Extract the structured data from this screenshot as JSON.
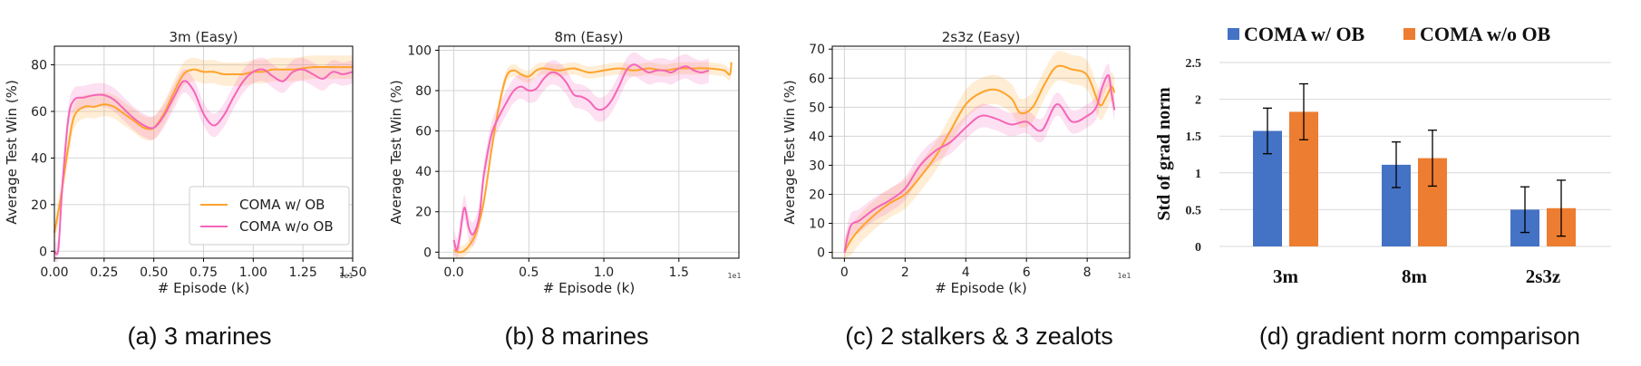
{
  "colors": {
    "coma_ob": "#ffa32b",
    "coma_no_ob": "#f565b8",
    "bar_ob": "#4472c4",
    "bar_no_ob": "#ed7d31"
  },
  "chart_data": [
    {
      "type": "line",
      "title": "3m (Easy)",
      "caption": "(a) 3 marines",
      "xlabel": "# Episode (k)",
      "ylabel": "Average Test Win (%)",
      "xlim": [
        0,
        1.5
      ],
      "ylim": [
        -3,
        88
      ],
      "xticks": [
        "0.00",
        "0.25",
        "0.50",
        "0.75",
        "1.00",
        "1.25",
        "1.50"
      ],
      "xtick_values": [
        0,
        0.25,
        0.5,
        0.75,
        1.0,
        1.25,
        1.5
      ],
      "yticks": [
        "0",
        "20",
        "40",
        "60",
        "80"
      ],
      "ytick_values": [
        0,
        20,
        40,
        60,
        80
      ],
      "x_multiplier": "1e1",
      "legend": "lower-right",
      "grid": true,
      "series": [
        {
          "name": "COMA w/ OB",
          "x": [
            0,
            0.03,
            0.07,
            0.1,
            0.15,
            0.2,
            0.25,
            0.3,
            0.35,
            0.4,
            0.45,
            0.5,
            0.55,
            0.6,
            0.65,
            0.7,
            0.75,
            0.8,
            0.85,
            0.9,
            0.95,
            1.0,
            1.05,
            1.1,
            1.2,
            1.3,
            1.4,
            1.5
          ],
          "y": [
            8,
            22,
            45,
            58,
            62,
            62,
            63,
            62,
            59,
            56,
            53,
            53,
            59,
            68,
            76,
            78,
            77,
            77,
            76,
            76,
            76,
            77,
            77,
            78,
            78,
            79,
            79,
            79
          ],
          "band": 5
        },
        {
          "name": "COMA w/o OB",
          "x": [
            0,
            0.02,
            0.04,
            0.07,
            0.1,
            0.15,
            0.2,
            0.25,
            0.3,
            0.35,
            0.4,
            0.45,
            0.5,
            0.55,
            0.6,
            0.65,
            0.7,
            0.75,
            0.8,
            0.85,
            0.9,
            0.95,
            1.0,
            1.05,
            1.1,
            1.15,
            1.2,
            1.25,
            1.3,
            1.35,
            1.4,
            1.45,
            1.5
          ],
          "y": [
            0,
            1,
            28,
            57,
            65,
            66,
            67,
            67,
            65,
            61,
            57,
            54,
            53,
            58,
            66,
            73,
            69,
            59,
            54,
            58,
            66,
            73,
            77,
            78,
            75,
            73,
            77,
            78,
            76,
            74,
            77,
            76,
            77
          ],
          "band": 5
        }
      ]
    },
    {
      "type": "line",
      "title": "8m (Easy)",
      "caption": "(b) 8 marines",
      "xlabel": "# Episode (k)",
      "ylabel": "Average Test Win (%)",
      "xlim": [
        -0.1,
        1.9
      ],
      "ylim": [
        -3,
        102
      ],
      "xticks": [
        "0.0",
        "0.5",
        "1.0",
        "1.5"
      ],
      "xtick_values": [
        0,
        0.5,
        1.0,
        1.5
      ],
      "yticks": [
        "0",
        "20",
        "40",
        "60",
        "80",
        "100"
      ],
      "ytick_values": [
        0,
        20,
        40,
        60,
        80,
        100
      ],
      "x_multiplier": "1e1",
      "grid": true,
      "series": [
        {
          "name": "COMA w/ OB",
          "x": [
            0,
            0.05,
            0.1,
            0.15,
            0.2,
            0.25,
            0.3,
            0.35,
            0.4,
            0.45,
            0.5,
            0.55,
            0.6,
            0.7,
            0.8,
            0.9,
            1.0,
            1.1,
            1.2,
            1.3,
            1.4,
            1.5,
            1.6,
            1.7,
            1.8,
            1.84,
            1.85
          ],
          "y": [
            1,
            0,
            3,
            10,
            25,
            50,
            72,
            87,
            90,
            88,
            87,
            90,
            91,
            90,
            91,
            89,
            90,
            91,
            90,
            91,
            90,
            91,
            91,
            91,
            90,
            88,
            94
          ],
          "band": 3
        },
        {
          "name": "COMA w/o OB",
          "x": [
            0,
            0.02,
            0.04,
            0.07,
            0.1,
            0.13,
            0.17,
            0.2,
            0.25,
            0.3,
            0.35,
            0.4,
            0.45,
            0.5,
            0.55,
            0.6,
            0.65,
            0.7,
            0.75,
            0.8,
            0.85,
            0.9,
            0.95,
            1.0,
            1.05,
            1.1,
            1.15,
            1.2,
            1.25,
            1.3,
            1.35,
            1.4,
            1.45,
            1.5,
            1.55,
            1.6,
            1.65,
            1.7
          ],
          "y": [
            6,
            1,
            8,
            22,
            12,
            9,
            18,
            38,
            58,
            67,
            74,
            80,
            82,
            80,
            81,
            86,
            89,
            88,
            84,
            78,
            77,
            75,
            71,
            71,
            75,
            82,
            90,
            93,
            91,
            89,
            90,
            90,
            89,
            91,
            92,
            90,
            89,
            90
          ],
          "band": 6
        }
      ]
    },
    {
      "type": "line",
      "title": "2s3z (Easy)",
      "caption": "(c) 2 stalkers & 3 zealots",
      "xlabel": "# Episode (k)",
      "ylabel": "Average Test Win (%)",
      "xlim": [
        -0.4,
        9.4
      ],
      "ylim": [
        -2,
        71
      ],
      "xticks": [
        "0",
        "2",
        "4",
        "6",
        "8"
      ],
      "xtick_values": [
        0,
        2,
        4,
        6,
        8
      ],
      "yticks": [
        "0",
        "10",
        "20",
        "30",
        "40",
        "50",
        "60",
        "70"
      ],
      "ytick_values": [
        0,
        10,
        20,
        30,
        40,
        50,
        60,
        70
      ],
      "x_multiplier": "1e1",
      "grid": true,
      "series": [
        {
          "name": "COMA w/ OB",
          "x": [
            0,
            0.2,
            0.5,
            1.0,
            1.5,
            2.0,
            2.5,
            3.0,
            3.5,
            4.0,
            4.5,
            5.0,
            5.5,
            5.8,
            6.2,
            6.6,
            7.0,
            7.5,
            8.0,
            8.4,
            8.6,
            8.8,
            8.9
          ],
          "y": [
            0,
            4,
            8,
            13,
            17,
            20,
            26,
            33,
            42,
            51,
            55,
            56,
            53,
            48,
            50,
            58,
            64,
            63,
            61,
            51,
            53,
            57,
            55
          ],
          "band": 5
        },
        {
          "name": "COMA w/o OB",
          "x": [
            0,
            0.2,
            0.5,
            1.0,
            1.5,
            2.0,
            2.5,
            3.0,
            3.5,
            4.0,
            4.5,
            5.0,
            5.5,
            6.0,
            6.5,
            7.0,
            7.5,
            8.0,
            8.3,
            8.5,
            8.7,
            8.8,
            8.9
          ],
          "y": [
            0,
            9,
            11,
            15,
            18,
            22,
            30,
            35,
            38,
            43,
            47,
            46,
            44,
            45,
            42,
            51,
            45,
            47,
            50,
            57,
            61,
            55,
            49
          ],
          "band": 4
        }
      ]
    },
    {
      "type": "bar",
      "caption": "(d) gradient norm comparison",
      "ylabel": "Std of grad norm",
      "categories": [
        "3m",
        "8m",
        "2s3z"
      ],
      "ylim": [
        0,
        2.5
      ],
      "yticks": [
        "0",
        "0.5",
        "1",
        "1.5",
        "2",
        "2.5"
      ],
      "ytick_values": [
        0,
        0.5,
        1,
        1.5,
        2,
        2.5
      ],
      "legend": "top",
      "grid": true,
      "series": [
        {
          "name": "COMA w/ OB",
          "values": [
            1.57,
            1.11,
            0.5
          ],
          "err": [
            0.31,
            0.31,
            0.31
          ]
        },
        {
          "name": "COMA w/o OB",
          "values": [
            1.83,
            1.2,
            0.52
          ],
          "err": [
            0.38,
            0.38,
            0.38
          ]
        }
      ]
    }
  ]
}
